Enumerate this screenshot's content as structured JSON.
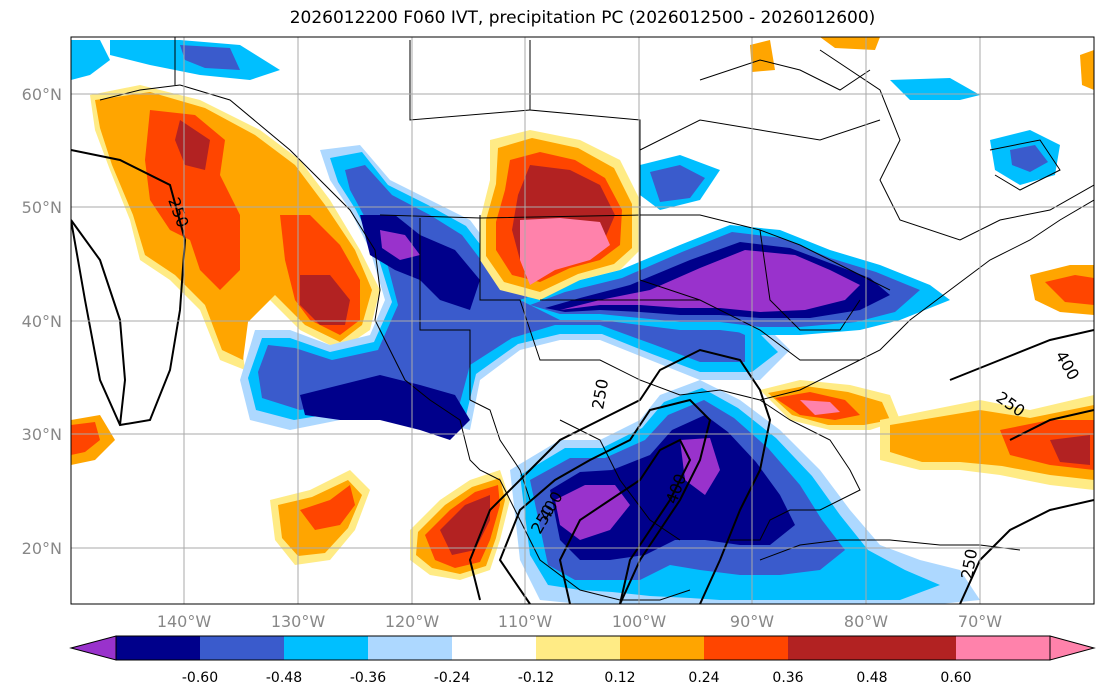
{
  "title": "2026012200 F060 IVT, precipitation PC (2026012500 - 2026012600)",
  "map": {
    "lon_range": [
      -150,
      -60
    ],
    "lat_range": [
      15,
      65
    ],
    "lon_ticks": [
      "140°W",
      "130°W",
      "120°W",
      "110°W",
      "100°W",
      "90°W",
      "80°W",
      "70°W"
    ],
    "lat_ticks": [
      "60°N",
      "50°N",
      "40°N",
      "30°N",
      "20°N"
    ],
    "grid": true,
    "contour_labels": [
      "250",
      "250",
      "250",
      "250",
      "250",
      "400",
      "400",
      "400"
    ]
  },
  "colorbar": {
    "orientation": "horizontal",
    "extend": "both",
    "labels": [
      "-0.60",
      "-0.48",
      "-0.36",
      "-0.24",
      "-0.12",
      "0.12",
      "0.24",
      "0.36",
      "0.48",
      "0.60"
    ],
    "colors": [
      "#9932cc",
      "#00008b",
      "#3a5bcc",
      "#00bfff",
      "#add8ff",
      "#ffffff",
      "#ffeb85",
      "#ffa500",
      "#ff4500",
      "#b22222",
      "#ff82ab"
    ]
  }
}
